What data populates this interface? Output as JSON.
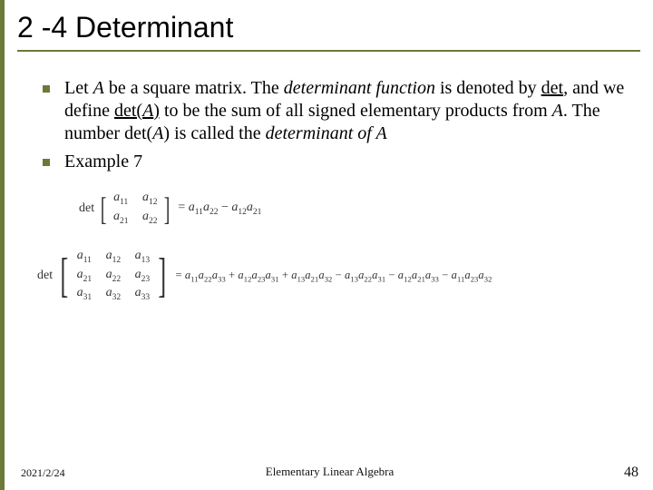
{
  "title": "2 -4 Determinant",
  "accent_color": "#6a7a3a",
  "bullets": [
    {
      "segments": [
        {
          "t": "Let ",
          "i": false,
          "u": false
        },
        {
          "t": "A",
          "i": true,
          "u": false
        },
        {
          "t": " be a square matrix. The ",
          "i": false,
          "u": false
        },
        {
          "t": "determinant function",
          "i": true,
          "u": false
        },
        {
          "t": " is denoted by ",
          "i": false,
          "u": false
        },
        {
          "t": "det",
          "i": false,
          "u": true
        },
        {
          "t": ", and we define ",
          "i": false,
          "u": false
        },
        {
          "t": "det(",
          "i": false,
          "u": true
        },
        {
          "t": "A",
          "i": true,
          "u": true
        },
        {
          "t": ")",
          "i": false,
          "u": true
        },
        {
          "t": " to be the sum of all signed elementary products from ",
          "i": false,
          "u": false
        },
        {
          "t": "A",
          "i": true,
          "u": false
        },
        {
          "t": ". The number det(",
          "i": false,
          "u": false
        },
        {
          "t": "A",
          "i": true,
          "u": false
        },
        {
          "t": ") is called the ",
          "i": false,
          "u": false
        },
        {
          "t": "determinant of A",
          "i": true,
          "u": false
        }
      ]
    },
    {
      "segments": [
        {
          "t": "Example 7",
          "i": false,
          "u": false
        }
      ]
    }
  ],
  "det_label": "det",
  "matrix2": [
    [
      "a",
      "11",
      "a",
      "12"
    ],
    [
      "a",
      "21",
      "a",
      "22"
    ]
  ],
  "eq2_rhs_terms": [
    {
      "sign": "=",
      "a": "11",
      "b": "22"
    },
    {
      "sign": "−",
      "a": "12",
      "b": "21"
    }
  ],
  "matrix3": [
    [
      "a",
      "11",
      "a",
      "12",
      "a",
      "13"
    ],
    [
      "a",
      "21",
      "a",
      "22",
      "a",
      "23"
    ],
    [
      "a",
      "31",
      "a",
      "32",
      "a",
      "33"
    ]
  ],
  "eq3_rhs_terms": [
    {
      "sign": "=",
      "a": "11",
      "b": "22",
      "c": "33"
    },
    {
      "sign": "+",
      "a": "12",
      "b": "23",
      "c": "31"
    },
    {
      "sign": "+",
      "a": "13",
      "b": "21",
      "c": "32"
    },
    {
      "sign": "−",
      "a": "13",
      "b": "22",
      "c": "31"
    },
    {
      "sign": "−",
      "a": "12",
      "b": "21",
      "c": "33"
    },
    {
      "sign": "−",
      "a": "11",
      "b": "23",
      "c": "32"
    }
  ],
  "footer": {
    "date": "2021/2/24",
    "center": "Elementary Linear Algebra",
    "page": "48"
  }
}
